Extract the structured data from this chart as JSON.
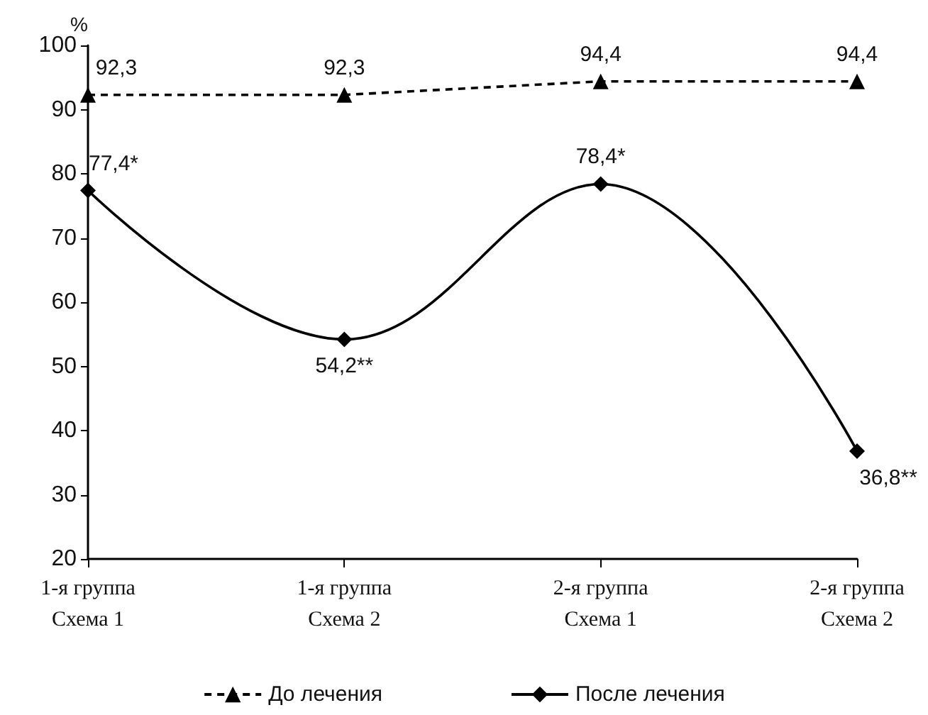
{
  "chart_data": {
    "type": "line",
    "ylabel": "%",
    "categories": [
      "1-я группа\nСхема 1",
      "1-я группа\nСхема 2",
      "2-я группа\nСхема 1",
      "2-я группа\nСхема 2"
    ],
    "series": [
      {
        "name": "До лечения",
        "color": "#000000",
        "values": [
          92.3,
          92.3,
          94.4,
          94.4
        ],
        "value_labels": [
          "92,3",
          "92,3",
          "94,4",
          "94,4"
        ],
        "marker": "triangle",
        "line_style": "dashed"
      },
      {
        "name": "После лечения",
        "color": "#000000",
        "values": [
          77.4,
          54.2,
          78.4,
          36.8
        ],
        "value_labels": [
          "77,4*",
          "54,2**",
          "78,4*",
          "36,8**"
        ],
        "marker": "diamond",
        "line_style": "solid"
      }
    ],
    "ylim": [
      20,
      100
    ],
    "yticks": [
      20,
      30,
      40,
      50,
      60,
      70,
      80,
      90,
      100
    ],
    "grid": false,
    "legend": "bottom"
  }
}
